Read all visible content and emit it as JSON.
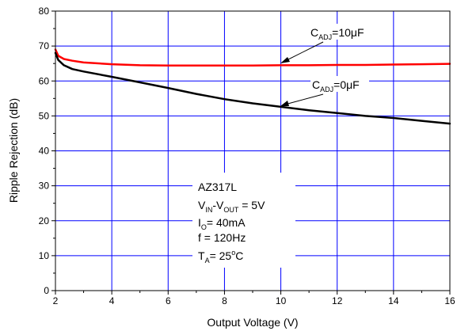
{
  "chart_data": {
    "type": "line",
    "xlabel": "Output Voltage (V)",
    "ylabel": "Ripple Rejection (dB)",
    "xlim": [
      2,
      16
    ],
    "ylim": [
      0,
      80
    ],
    "xticks": [
      2,
      4,
      6,
      8,
      10,
      12,
      14,
      16
    ],
    "yticks": [
      0,
      10,
      20,
      30,
      40,
      50,
      60,
      70,
      80
    ],
    "grid": true,
    "colors": {
      "cadj_10uF": "#ff0000",
      "cadj_0uF": "#000000",
      "grid": "#0000ff"
    },
    "series": [
      {
        "label_main": "C",
        "label_sub": "ADJ",
        "label_rest": "=10μF",
        "x": [
          2,
          2.1,
          2.3,
          2.6,
          3,
          4,
          5,
          6,
          7,
          8,
          9,
          10,
          11,
          12,
          13,
          14,
          15,
          16
        ],
        "y": [
          69,
          67.2,
          66.3,
          65.8,
          65.3,
          64.8,
          64.5,
          64.4,
          64.4,
          64.4,
          64.4,
          64.5,
          64.5,
          64.6,
          64.6,
          64.7,
          64.8,
          64.9
        ]
      },
      {
        "label_main": "C",
        "label_sub": "ADJ",
        "label_rest": "=0μF",
        "x": [
          2,
          2.1,
          2.3,
          2.6,
          3,
          4,
          5,
          6,
          7,
          8,
          9,
          10,
          11,
          12,
          13,
          14,
          15,
          16
        ],
        "y": [
          68,
          66,
          64.5,
          63.4,
          62.7,
          61.2,
          59.6,
          58,
          56.3,
          54.8,
          53.6,
          52.6,
          51.6,
          50.8,
          50,
          49.4,
          48.6,
          47.8
        ]
      }
    ],
    "conditions": {
      "part": "AZ317L",
      "vin": {
        "main1": "V",
        "sub1": "IN",
        "dash": "-V",
        "sub2": "OUT",
        "rest": " = 5V"
      },
      "io": {
        "main": "I",
        "sub": "O",
        "rest": "= 40mA"
      },
      "freq": "f = 120Hz",
      "ta": {
        "main": "T",
        "sub": "A",
        "rest": "= 25",
        "sup": "o",
        "unit": "C"
      }
    }
  }
}
